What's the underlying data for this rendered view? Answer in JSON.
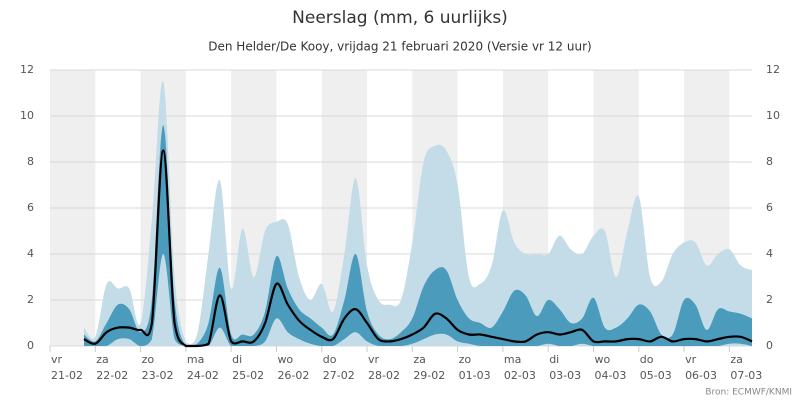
{
  "chart_data": {
    "type": "area",
    "title": "Neerslag (mm, 6 uurlijks)",
    "subtitle": "Den Helder/De Kooy, vrijdag 21 februari 2020 (Versie vr 12 uur)",
    "credit": "Bron: ECMWF/KNMI",
    "x": [
      0.75,
      1,
      1.25,
      1.5,
      1.75,
      2,
      2.25,
      2.5,
      2.75,
      3,
      3.25,
      3.5,
      3.75,
      4,
      4.25,
      4.5,
      4.75,
      5,
      5.25,
      5.5,
      5.75,
      6,
      6.25,
      6.5,
      6.75,
      7,
      7.25,
      7.5,
      7.75,
      8,
      8.25,
      8.5,
      8.75,
      9,
      9.25,
      9.5,
      9.75,
      10,
      10.25,
      10.5,
      10.75,
      11,
      11.25,
      11.5,
      11.75,
      12,
      12.25,
      12.5,
      12.75,
      13,
      13.25,
      13.5,
      13.75,
      14,
      14.25,
      14.5,
      14.75,
      15,
      15.25,
      15.5
    ],
    "series": [
      {
        "kind": "band",
        "color": "#c3dce7",
        "values": [
          0.8,
          0.4,
          2.7,
          2.5,
          2.5,
          1.0,
          5.5,
          11.5,
          3.0,
          0.2,
          0.5,
          4.0,
          7.2,
          2.5,
          5.1,
          3.0,
          5.0,
          5.4,
          5.3,
          3.0,
          2.0,
          2.7,
          1.5,
          4.0,
          7.3,
          3.5,
          2.0,
          1.8,
          2.0,
          4.5,
          8.0,
          8.7,
          8.5,
          7.0,
          3.0,
          2.7,
          3.5,
          5.9,
          4.5,
          4.0,
          4.0,
          4.0,
          4.8,
          4.2,
          4.0,
          4.8,
          5.0,
          3.0,
          5.0,
          6.5,
          3.0,
          2.8,
          4.0,
          4.5,
          4.5,
          3.5,
          4.0,
          4.2,
          3.5,
          3.3
        ]
      },
      {
        "kind": "band",
        "color": "#4b9bbd",
        "values": [
          0.5,
          0.2,
          1.0,
          1.8,
          1.6,
          0.6,
          2.0,
          9.6,
          2.0,
          0,
          0.1,
          1.0,
          3.4,
          0.5,
          0.5,
          0.5,
          1.5,
          3.9,
          2.5,
          1.6,
          1.2,
          0.8,
          0.5,
          2.0,
          4.0,
          1.5,
          0.5,
          0.3,
          0.6,
          1.2,
          2.6,
          3.3,
          3.3,
          2.0,
          1.2,
          1.0,
          0.8,
          1.5,
          2.4,
          2.2,
          1.3,
          2.0,
          1.6,
          1.0,
          1.2,
          2.1,
          0.8,
          0.8,
          1.2,
          1.8,
          1.5,
          0.5,
          0.5,
          2.0,
          1.8,
          0.7,
          1.6,
          1.5,
          1.4,
          1.2
        ],
        "low": [
          0,
          0,
          0,
          0.3,
          0.3,
          0,
          0.3,
          4.0,
          0.3,
          0,
          0,
          0,
          0.8,
          0,
          0,
          0,
          0.2,
          1.2,
          0.6,
          0.3,
          0.1,
          0,
          0,
          0.3,
          0.6,
          0.2,
          0,
          0,
          0,
          0.1,
          0.3,
          0.5,
          0.5,
          0.2,
          0.1,
          0,
          0,
          0,
          0,
          0,
          0,
          0.1,
          0,
          0,
          0.1,
          0,
          0,
          0,
          0,
          0,
          0,
          0,
          0,
          0,
          0,
          0,
          0,
          0.1,
          0.1,
          0
        ]
      },
      {
        "kind": "line",
        "color": "#000000",
        "values": [
          0.3,
          0.1,
          0.6,
          0.8,
          0.8,
          0.7,
          1.0,
          8.5,
          1.0,
          0,
          0,
          0.1,
          2.2,
          0.2,
          0.2,
          0.2,
          1.0,
          2.7,
          1.8,
          1.1,
          0.7,
          0.4,
          0.3,
          1.2,
          1.6,
          1.0,
          0.3,
          0.2,
          0.3,
          0.5,
          0.8,
          1.4,
          1.2,
          0.7,
          0.5,
          0.5,
          0.4,
          0.3,
          0.2,
          0.2,
          0.5,
          0.6,
          0.5,
          0.6,
          0.7,
          0.2,
          0.2,
          0.2,
          0.3,
          0.3,
          0.2,
          0.4,
          0.2,
          0.3,
          0.3,
          0.2,
          0.3,
          0.4,
          0.4,
          0.2
        ]
      }
    ],
    "xlim": [
      0,
      15.5
    ],
    "xticks": [
      {
        "value": 0,
        "label": "21-02"
      },
      {
        "value": 1,
        "label": "22-02"
      },
      {
        "value": 2,
        "label": "23-02"
      },
      {
        "value": 3,
        "label": "24-02"
      },
      {
        "value": 4,
        "label": "25-02"
      },
      {
        "value": 5,
        "label": "26-02"
      },
      {
        "value": 6,
        "label": "27-02"
      },
      {
        "value": 7,
        "label": "28-02"
      },
      {
        "value": 8,
        "label": "29-02"
      },
      {
        "value": 9,
        "label": "01-03"
      },
      {
        "value": 10,
        "label": "02-03"
      },
      {
        "value": 11,
        "label": "03-03"
      },
      {
        "value": 12,
        "label": "04-03"
      },
      {
        "value": 13,
        "label": "05-03"
      },
      {
        "value": 14,
        "label": "06-03"
      },
      {
        "value": 15,
        "label": "07-03"
      }
    ],
    "xtick_days": [
      "vr",
      "za",
      "zo",
      "ma",
      "di",
      "wo",
      "do",
      "vr",
      "za",
      "zo",
      "ma",
      "di",
      "wo",
      "do",
      "vr",
      "za"
    ],
    "ylim": [
      0,
      12
    ],
    "yticks": [
      0,
      2,
      4,
      6,
      8,
      10,
      12
    ],
    "grid": true,
    "day_shading": "#efefef"
  }
}
